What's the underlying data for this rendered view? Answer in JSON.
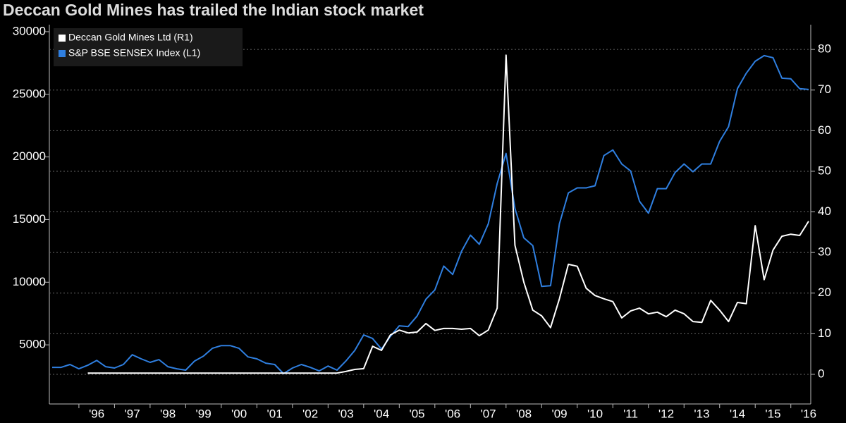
{
  "chart_data": {
    "type": "line",
    "title": "Deccan Gold Mines has trailed the Indian stock market",
    "x": [
      1995.25,
      1995.5,
      1995.75,
      1996,
      1996.25,
      1996.5,
      1996.75,
      1997,
      1997.25,
      1997.5,
      1997.75,
      1998,
      1998.25,
      1998.5,
      1998.75,
      1999,
      1999.25,
      1999.5,
      1999.75,
      2000,
      2000.25,
      2000.5,
      2000.75,
      2001,
      2001.25,
      2001.5,
      2001.75,
      2002,
      2002.25,
      2002.5,
      2002.75,
      2003,
      2003.25,
      2003.5,
      2003.75,
      2004,
      2004.25,
      2004.5,
      2004.75,
      2005,
      2005.25,
      2005.5,
      2005.75,
      2006,
      2006.25,
      2006.5,
      2006.75,
      2007,
      2007.25,
      2007.5,
      2007.75,
      2008,
      2008.25,
      2008.5,
      2008.75,
      2009,
      2009.25,
      2009.5,
      2009.75,
      2010,
      2010.25,
      2010.5,
      2010.75,
      2011,
      2011.25,
      2011.5,
      2011.75,
      2012,
      2012.25,
      2012.5,
      2012.75,
      2013,
      2013.25,
      2013.5,
      2013.75,
      2014,
      2014.25,
      2014.5,
      2014.75,
      2015,
      2015.25,
      2015.5,
      2015.75,
      2016,
      2016.25,
      2016.5
    ],
    "series": [
      {
        "name": "Deccan Gold Mines Ltd  (R1)",
        "color": "#ffffff",
        "axis": "y2",
        "values": [
          null,
          null,
          null,
          null,
          0.3,
          0.3,
          0.3,
          0.3,
          0.3,
          0.3,
          0.3,
          0.3,
          0.3,
          0.3,
          0.3,
          0.3,
          0.3,
          0.3,
          0.3,
          0.3,
          0.3,
          0.3,
          0.3,
          0.3,
          0.3,
          0.3,
          0.3,
          0.3,
          0.3,
          0.3,
          0.3,
          0.3,
          0.3,
          0.7,
          1.2,
          1.4,
          6.9,
          5.9,
          9.7,
          10.9,
          10.2,
          10.4,
          12.5,
          10.8,
          11.3,
          11.3,
          11.1,
          11.3,
          9.5,
          10.9,
          16.3,
          78.6,
          31.8,
          22.7,
          15.8,
          14.4,
          11.5,
          18.6,
          27.1,
          26.6,
          21.2,
          19.4,
          18.6,
          17.9,
          13.9,
          15.6,
          16.3,
          14.9,
          15.3,
          14.2,
          15.8,
          14.9,
          13.0,
          12.8,
          18.2,
          15.8,
          13.0,
          17.7,
          17.4,
          36.6,
          23.3,
          30.6,
          34.0,
          34.5,
          34.2,
          37.7
        ]
      },
      {
        "name": "S&P BSE SENSEX Index  (L1)",
        "color": "#2f7fe0",
        "values": [
          3200,
          3200,
          3430,
          3090,
          3370,
          3760,
          3260,
          3150,
          3430,
          4210,
          3880,
          3600,
          3820,
          3260,
          3090,
          2980,
          3710,
          4100,
          4720,
          4940,
          4940,
          4720,
          4040,
          3880,
          3540,
          3430,
          2700,
          3150,
          3430,
          3200,
          2920,
          3310,
          2980,
          3710,
          4550,
          5790,
          5510,
          4660,
          5670,
          6520,
          6460,
          7300,
          8650,
          9380,
          11290,
          10620,
          12470,
          13760,
          13030,
          14660,
          17870,
          20280,
          15900,
          13540,
          12920,
          9660,
          9720,
          14660,
          17130,
          17530,
          17530,
          17700,
          20110,
          20560,
          19440,
          18880,
          16460,
          15510,
          17470,
          17470,
          18760,
          19440,
          18820,
          19440,
          19440,
          21240,
          22420,
          25450,
          26690,
          27640,
          28090,
          27920,
          26290,
          26240,
          25450,
          25390
        ]
      }
    ],
    "xlim": [
      1995.17,
      2016.56
    ],
    "xticks": [
      {
        "value": 1996.5,
        "label": "'96"
      },
      {
        "value": 1997.5,
        "label": "'97"
      },
      {
        "value": 1998.5,
        "label": "'98"
      },
      {
        "value": 1999.5,
        "label": "'99"
      },
      {
        "value": 2000.5,
        "label": "'00"
      },
      {
        "value": 2001.5,
        "label": "'01"
      },
      {
        "value": 2002.5,
        "label": "'02"
      },
      {
        "value": 2003.5,
        "label": "'03"
      },
      {
        "value": 2004.5,
        "label": "'04"
      },
      {
        "value": 2005.5,
        "label": "'05"
      },
      {
        "value": 2006.5,
        "label": "'06"
      },
      {
        "value": 2007.5,
        "label": "'07"
      },
      {
        "value": 2008.5,
        "label": "'08"
      },
      {
        "value": 2009.5,
        "label": "'09"
      },
      {
        "value": 2010.5,
        "label": "'10"
      },
      {
        "value": 2011.5,
        "label": "'11"
      },
      {
        "value": 2012.5,
        "label": "'12"
      },
      {
        "value": 2013.5,
        "label": "'13"
      },
      {
        "value": 2014.5,
        "label": "'14"
      },
      {
        "value": 2015.5,
        "label": "'15"
      },
      {
        "value": 2016.5,
        "label": "'16"
      }
    ],
    "ylim": [
      280,
      30560
    ],
    "yticks": [
      5000,
      10000,
      15000,
      20000,
      25000,
      30000
    ],
    "y2lim": [
      -7.3,
      86.1
    ],
    "y2ticks": [
      0,
      10,
      20,
      30,
      40,
      50,
      60,
      70,
      80
    ],
    "grid": true,
    "legend": "top-left"
  }
}
